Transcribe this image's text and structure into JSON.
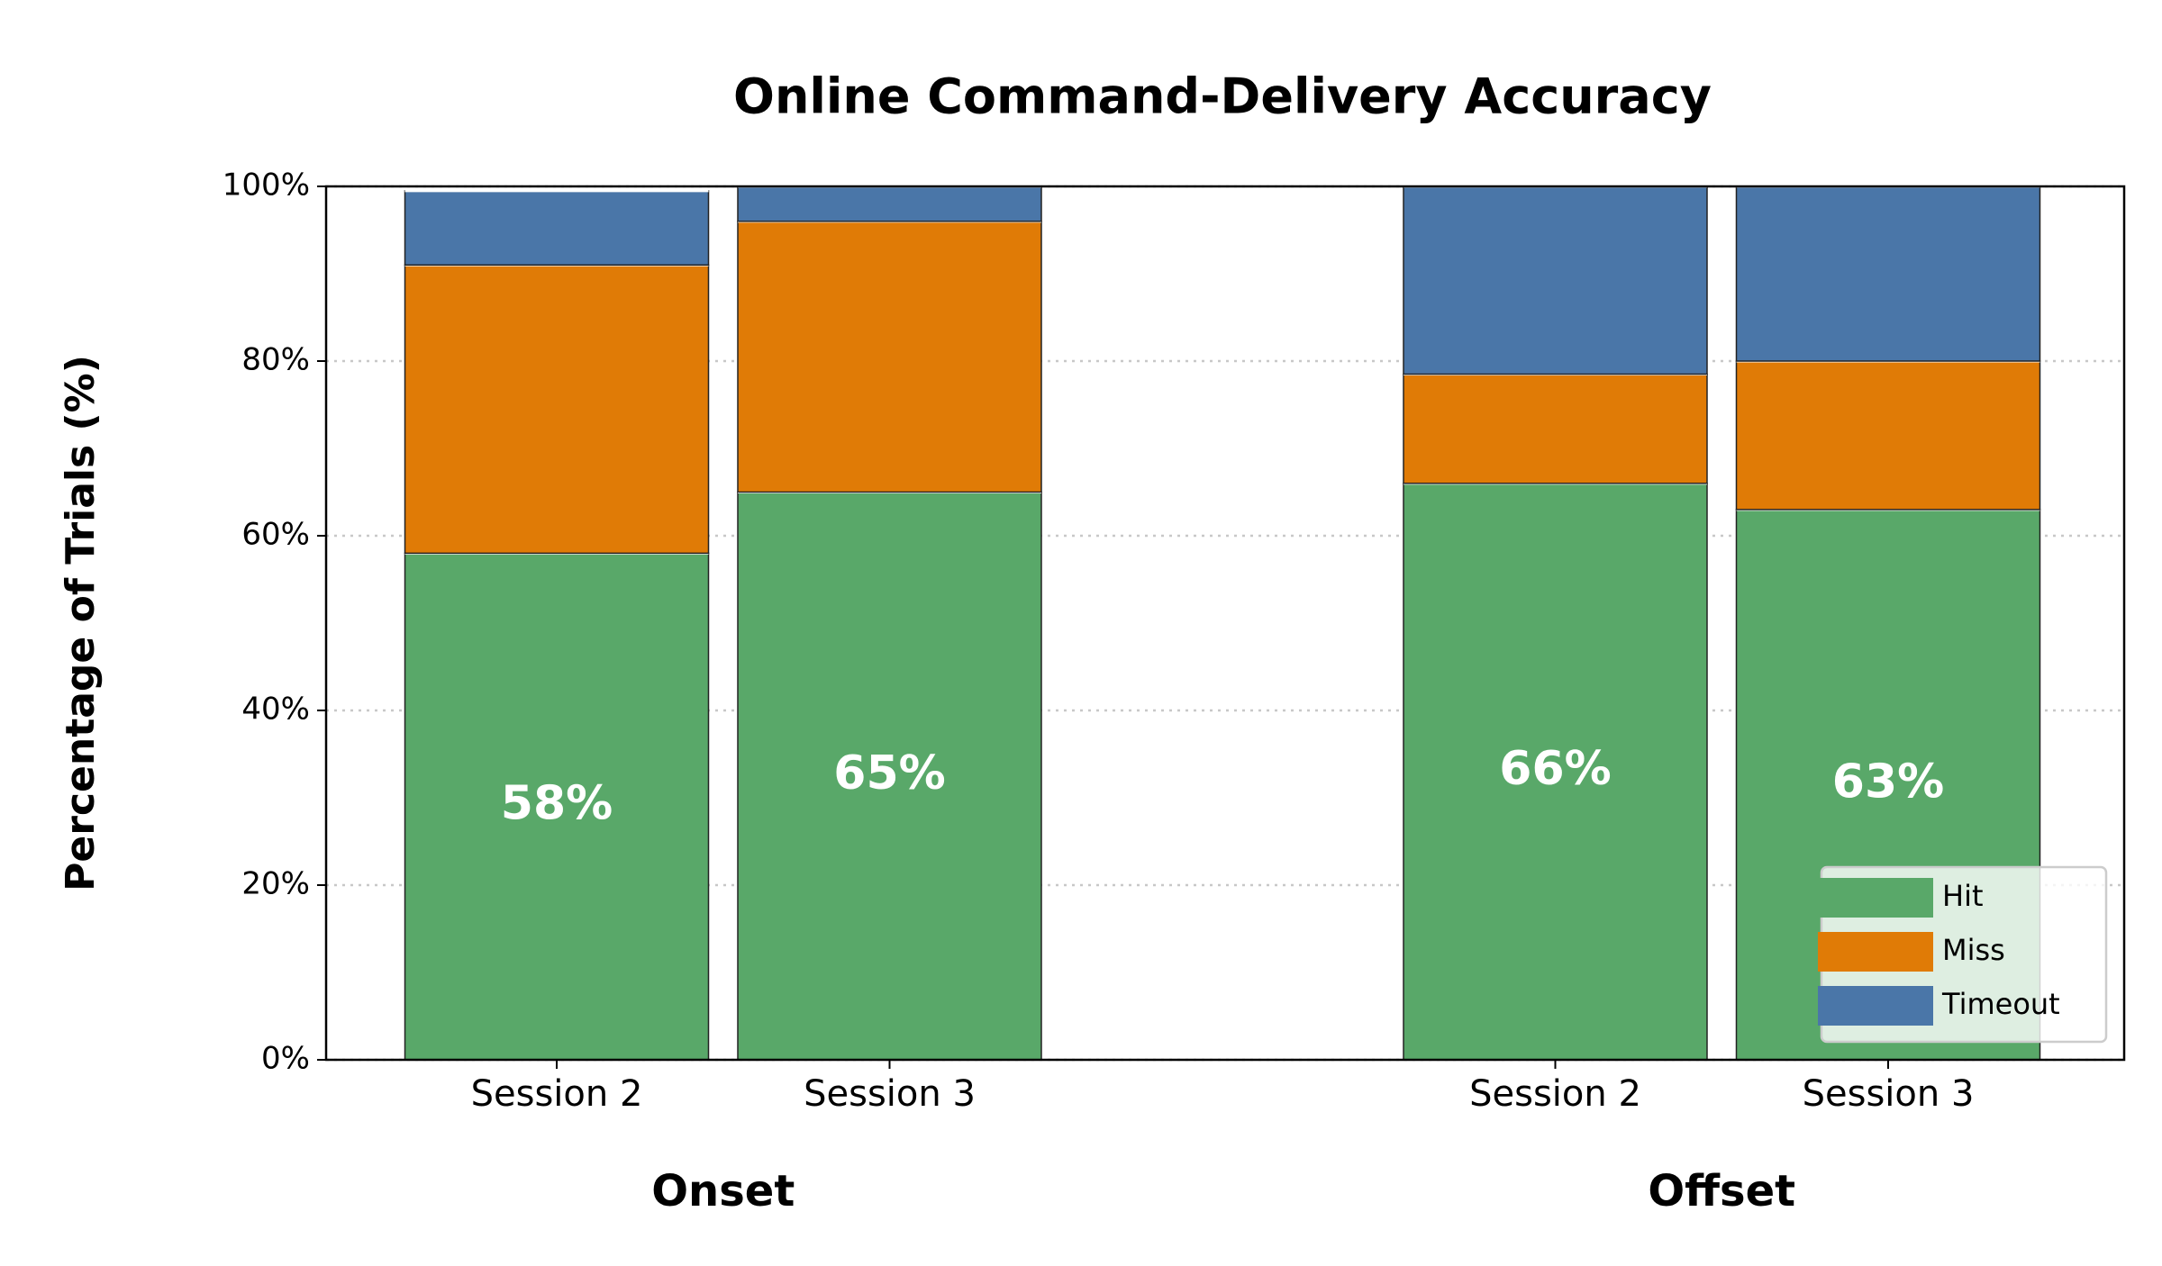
{
  "chart_data": {
    "type": "stacked_bar",
    "title": "Online Command-Delivery Accuracy",
    "ylabel": "Percentage of Trials (%)",
    "groups": [
      "Onset",
      "Offset"
    ],
    "categories": [
      "Session 2",
      "Session 3",
      "Session 2",
      "Session 3"
    ],
    "series": [
      {
        "name": "Hit",
        "color": "#59a869",
        "values": [
          58,
          65,
          66,
          63
        ],
        "value_labels": [
          "58%",
          "65%",
          "66%",
          "63%"
        ]
      },
      {
        "name": "Miss",
        "color": "#e07b06",
        "values": [
          33,
          31,
          12.5,
          17
        ]
      },
      {
        "name": "Timeout",
        "color": "#4a76a8",
        "values": [
          8.5,
          4,
          21.5,
          20
        ]
      }
    ],
    "ylim": [
      0,
      100
    ],
    "yticks": [
      {
        "value": 0,
        "label": "0%"
      },
      {
        "value": 20,
        "label": "20%"
      },
      {
        "value": 40,
        "label": "40%"
      },
      {
        "value": 60,
        "label": "60%"
      },
      {
        "value": 80,
        "label": "80%"
      },
      {
        "value": 100,
        "label": "100%"
      }
    ],
    "grid": true,
    "legend": "lower right"
  }
}
